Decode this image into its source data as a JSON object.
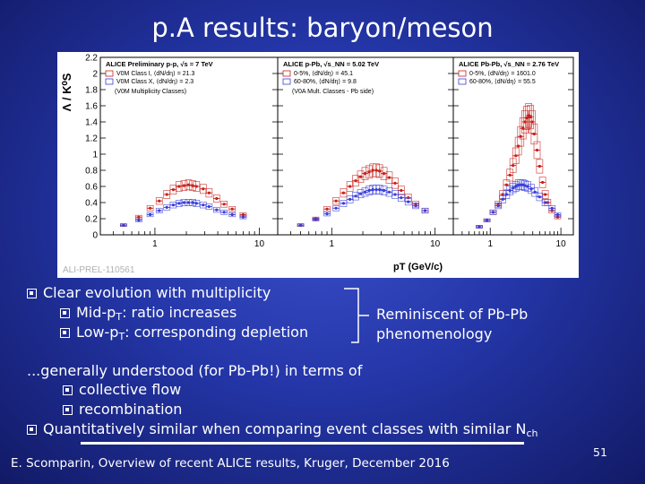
{
  "slide": {
    "title": "p.A results: baryon/meson",
    "page_number": "51",
    "footer": "E. Scomparin, Overview of recent ALICE results, Kruger, December 2016"
  },
  "colors": {
    "red": "#c8201a",
    "blue": "#3a3ed8"
  },
  "figure": {
    "watermark": "ALI-PREL-110561",
    "panels": [
      {
        "header": "ALICE Preliminary p-p, √s = 7 TeV",
        "legend": [
          "V0M Class I, ⟨dN/dη⟩ = 21.3",
          "V0M Class X, ⟨dN/dη⟩ = 2.3"
        ],
        "note": "(V0M Multiplicity Classes)"
      },
      {
        "header": "ALICE p-Pb, √s_NN = 5.02 TeV",
        "legend": [
          "0-5%, ⟨dN/dη⟩ = 45.1",
          "60-80%, ⟨dN/dη⟩ = 9.8"
        ],
        "note": "(V0A Mult. Classes - Pb side)"
      },
      {
        "header": "ALICE Pb-Pb, √s_NN = 2.76 TeV",
        "legend": [
          "0-5%, ⟨dN/dη⟩ = 1601.0",
          "60-80%, ⟨dN/dη⟩ = 55.5"
        ],
        "note": ""
      }
    ]
  },
  "chart_data": {
    "type": "scatter",
    "ylabel": "Λ / K⁰S",
    "xlabel": "pT (GeV/c)",
    "xscale": "log",
    "xlim": [
      0.3,
      15
    ],
    "ylim": [
      0,
      2.2
    ],
    "yticks": [
      "0",
      "0.2",
      "0.4",
      "0.6",
      "0.8",
      "1",
      "1.2",
      "1.4",
      "1.6",
      "1.8",
      "2",
      "2.2"
    ],
    "xticks": [
      "1",
      "10"
    ],
    "panels": [
      {
        "series": [
          {
            "name": "V0M Class I, ⟨dN/dη⟩ = 21.3",
            "color": "red",
            "x": [
              0.5,
              0.7,
              0.9,
              1.1,
              1.3,
              1.5,
              1.7,
              1.9,
              2.1,
              2.3,
              2.5,
              2.9,
              3.3,
              3.9,
              4.6,
              5.5,
              7
            ],
            "y": [
              0.12,
              0.22,
              0.33,
              0.42,
              0.5,
              0.56,
              0.6,
              0.61,
              0.62,
              0.61,
              0.6,
              0.57,
              0.52,
              0.45,
              0.38,
              0.32,
              0.25
            ]
          },
          {
            "name": "V0M Class X, ⟨dN/dη⟩ = 2.3",
            "color": "blue",
            "x": [
              0.5,
              0.7,
              0.9,
              1.1,
              1.3,
              1.5,
              1.7,
              1.9,
              2.1,
              2.3,
              2.5,
              2.9,
              3.3,
              3.9,
              4.6,
              5.5,
              7
            ],
            "y": [
              0.12,
              0.18,
              0.25,
              0.3,
              0.34,
              0.37,
              0.39,
              0.4,
              0.4,
              0.4,
              0.39,
              0.37,
              0.35,
              0.31,
              0.28,
              0.25,
              0.22
            ]
          }
        ]
      },
      {
        "series": [
          {
            "name": "0-5%, ⟨dN/dη⟩ = 45.1",
            "color": "red",
            "x": [
              0.5,
              0.7,
              0.9,
              1.1,
              1.3,
              1.5,
              1.7,
              1.9,
              2.1,
              2.3,
              2.5,
              2.7,
              2.9,
              3.2,
              3.6,
              4.1,
              4.7,
              5.5,
              6.5,
              8
            ],
            "y": [
              0.12,
              0.2,
              0.32,
              0.42,
              0.52,
              0.6,
              0.67,
              0.72,
              0.76,
              0.78,
              0.8,
              0.8,
              0.79,
              0.76,
              0.71,
              0.64,
              0.55,
              0.46,
              0.38,
              0.3
            ]
          },
          {
            "name": "60-80%, ⟨dN/dη⟩ = 9.8",
            "color": "blue",
            "x": [
              0.5,
              0.7,
              0.9,
              1.1,
              1.3,
              1.5,
              1.7,
              1.9,
              2.1,
              2.3,
              2.5,
              2.7,
              2.9,
              3.2,
              3.6,
              4.1,
              4.7,
              5.5,
              6.5,
              8
            ],
            "y": [
              0.12,
              0.19,
              0.26,
              0.33,
              0.39,
              0.44,
              0.48,
              0.51,
              0.53,
              0.55,
              0.56,
              0.56,
              0.56,
              0.55,
              0.53,
              0.5,
              0.46,
              0.41,
              0.36,
              0.3
            ]
          }
        ]
      },
      {
        "series": [
          {
            "name": "0-5%, ⟨dN/dη⟩ = 1601.0",
            "color": "red",
            "x": [
              0.7,
              0.9,
              1.1,
              1.3,
              1.5,
              1.7,
              1.9,
              2.1,
              2.3,
              2.5,
              2.7,
              2.9,
              3.1,
              3.3,
              3.5,
              3.7,
              3.9,
              4.2,
              4.6,
              5,
              5.5,
              6,
              6.5,
              7.5,
              9
            ],
            "y": [
              0.1,
              0.18,
              0.28,
              0.38,
              0.5,
              0.62,
              0.74,
              0.86,
              0.98,
              1.1,
              1.22,
              1.32,
              1.4,
              1.45,
              1.48,
              1.46,
              1.4,
              1.25,
              1.05,
              0.85,
              0.65,
              0.5,
              0.4,
              0.3,
              0.22
            ]
          },
          {
            "name": "60-80%, ⟨dN/dη⟩ = 55.5",
            "color": "blue",
            "x": [
              0.7,
              0.9,
              1.1,
              1.3,
              1.5,
              1.7,
              1.9,
              2.1,
              2.3,
              2.5,
              2.7,
              2.9,
              3.1,
              3.4,
              3.8,
              4.3,
              5,
              6,
              7.5,
              9
            ],
            "y": [
              0.1,
              0.18,
              0.28,
              0.36,
              0.44,
              0.5,
              0.55,
              0.58,
              0.6,
              0.62,
              0.62,
              0.62,
              0.61,
              0.6,
              0.57,
              0.53,
              0.47,
              0.4,
              0.33,
              0.25
            ]
          }
        ]
      }
    ]
  },
  "text": {
    "b1": "Clear evolution with multiplicity",
    "b1a_pre": "Mid-p",
    "b1a_sub": "T",
    "b1a_post": ": ratio increases",
    "b1b_pre": "Low-p",
    "b1b_sub": "T",
    "b1b_post": ": corresponding depletion",
    "reminiscent_1": "Reminiscent of Pb-Pb",
    "reminiscent_2": "phenomenology",
    "generally": "...generally understood (for Pb-Pb!) in terms of",
    "flow": "collective flow",
    "recomb": "recombination",
    "quant_pre": "Quantitatively similar when comparing event classes with similar N",
    "quant_sub": "ch"
  }
}
